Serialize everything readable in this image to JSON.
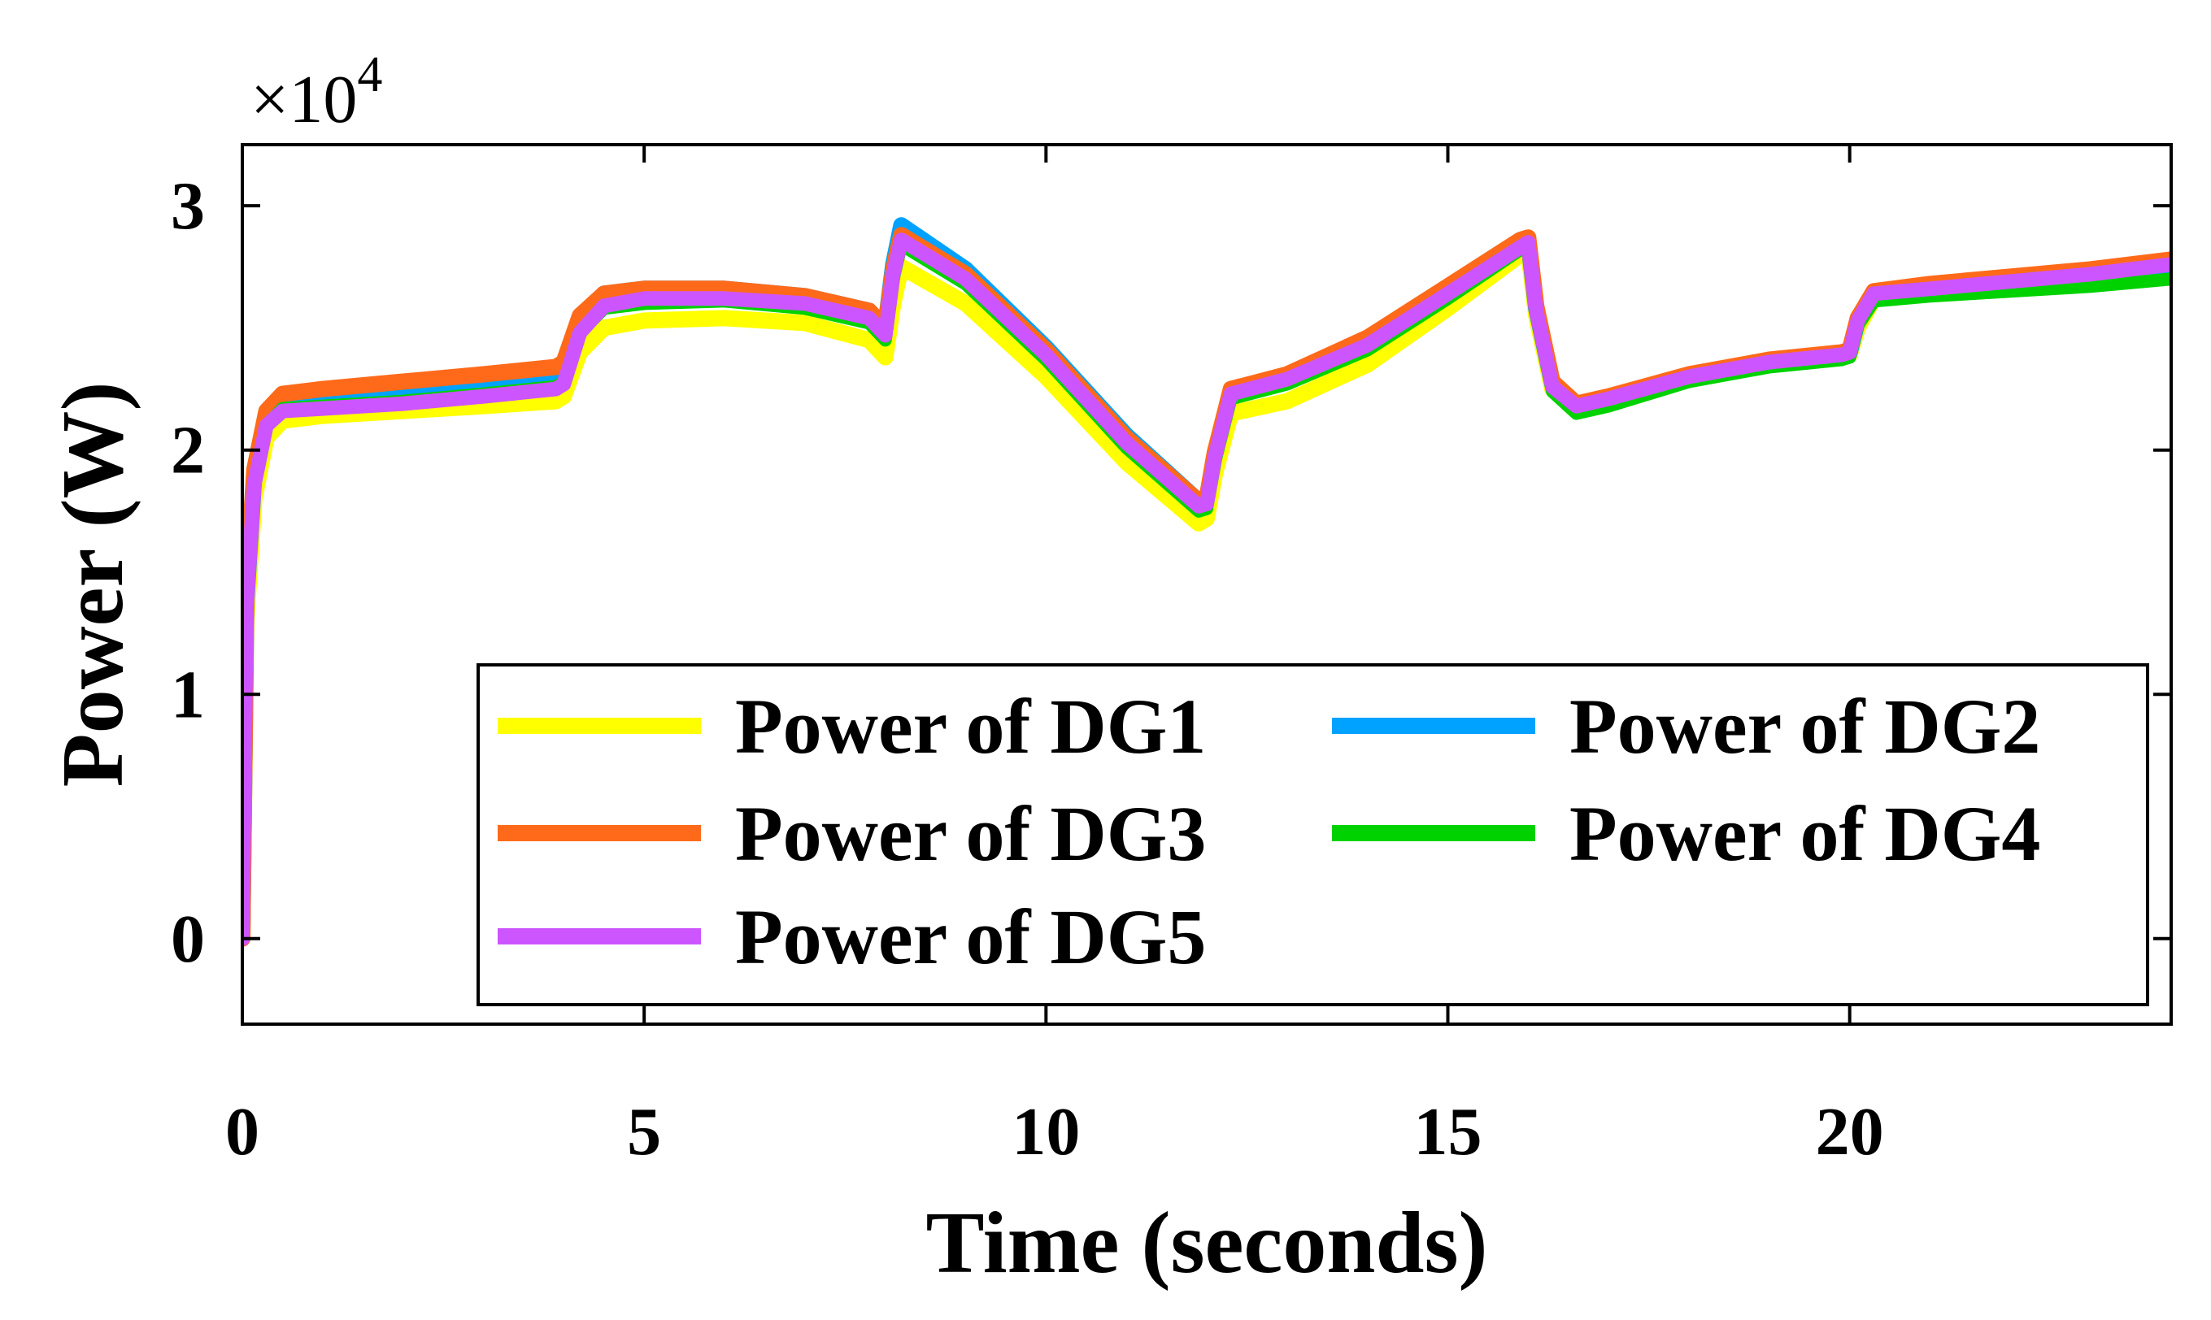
{
  "chart_data": {
    "type": "line",
    "title": "",
    "xlabel": "Time (seconds)",
    "ylabel": "Power (W)",
    "y_exponent_label": "×10",
    "y_exponent_power": "4",
    "xlim": [
      0,
      24
    ],
    "ylim": [
      -0.35,
      3.25
    ],
    "xticks": [
      0,
      5,
      10,
      15,
      20
    ],
    "xtick_labels": [
      "0",
      "5",
      "10",
      "15",
      "20"
    ],
    "yticks": [
      0,
      1,
      2,
      3
    ],
    "ytick_labels": [
      "0",
      "1",
      "2",
      "3"
    ],
    "grid": false,
    "legend_location": "lower-right",
    "series": [
      {
        "name": "Power of DG1",
        "color": "#ffff00",
        "x": [
          0,
          0.05,
          0.15,
          0.3,
          0.5,
          1,
          2,
          3,
          3.9,
          4.0,
          4.2,
          4.5,
          5,
          6,
          7,
          7.8,
          8.0,
          8.1,
          8.2,
          9,
          10,
          11,
          11.9,
          12.0,
          12.1,
          12.3,
          13,
          14,
          15,
          15.9,
          16.0,
          16.1,
          16.3,
          16.6,
          17,
          18,
          19,
          19.9,
          20.0,
          20.1,
          20.3,
          21,
          22,
          23,
          24
        ],
        "values": [
          0,
          1.3,
          1.8,
          2.05,
          2.12,
          2.14,
          2.16,
          2.18,
          2.2,
          2.22,
          2.4,
          2.5,
          2.53,
          2.54,
          2.52,
          2.45,
          2.38,
          2.6,
          2.75,
          2.6,
          2.3,
          1.95,
          1.7,
          1.72,
          1.9,
          2.15,
          2.2,
          2.35,
          2.58,
          2.8,
          2.82,
          2.55,
          2.25,
          2.17,
          2.2,
          2.29,
          2.35,
          2.38,
          2.39,
          2.5,
          2.62,
          2.64,
          2.67,
          2.7,
          2.74
        ]
      },
      {
        "name": "Power of DG2",
        "color": "#00a2ff",
        "x": [
          0,
          0.05,
          0.15,
          0.3,
          0.5,
          1,
          2,
          3,
          3.9,
          4.0,
          4.2,
          4.5,
          5,
          6,
          7,
          7.8,
          8.0,
          8.1,
          8.2,
          9,
          10,
          11,
          11.9,
          12.0,
          12.1,
          12.3,
          13,
          14,
          15,
          15.9,
          16.0,
          16.1,
          16.3,
          16.6,
          17,
          18,
          19,
          19.9,
          20.0,
          20.1,
          20.3,
          21,
          22,
          23,
          24
        ],
        "values": [
          0,
          1.38,
          1.9,
          2.13,
          2.2,
          2.22,
          2.24,
          2.28,
          2.3,
          2.32,
          2.53,
          2.64,
          2.66,
          2.66,
          2.63,
          2.57,
          2.5,
          2.76,
          2.92,
          2.74,
          2.42,
          2.06,
          1.79,
          1.8,
          1.98,
          2.24,
          2.3,
          2.44,
          2.65,
          2.84,
          2.86,
          2.58,
          2.27,
          2.18,
          2.21,
          2.3,
          2.36,
          2.39,
          2.4,
          2.53,
          2.64,
          2.67,
          2.69,
          2.72,
          2.76
        ]
      },
      {
        "name": "Power of DG3",
        "color": "#ff6a1a",
        "x": [
          0,
          0.05,
          0.15,
          0.3,
          0.5,
          1,
          2,
          3,
          3.9,
          4.0,
          4.2,
          4.5,
          5,
          6,
          7,
          7.8,
          8.0,
          8.1,
          8.2,
          9,
          10,
          11,
          11.9,
          12.0,
          12.1,
          12.3,
          13,
          14,
          15,
          15.9,
          16.0,
          16.1,
          16.3,
          16.6,
          17,
          18,
          19,
          19.9,
          20.0,
          20.1,
          20.3,
          21,
          22,
          23,
          24
        ],
        "values": [
          0,
          1.4,
          1.92,
          2.16,
          2.23,
          2.25,
          2.28,
          2.31,
          2.34,
          2.36,
          2.55,
          2.64,
          2.66,
          2.66,
          2.63,
          2.57,
          2.5,
          2.74,
          2.88,
          2.72,
          2.41,
          2.05,
          1.79,
          1.8,
          1.99,
          2.25,
          2.31,
          2.46,
          2.67,
          2.86,
          2.87,
          2.59,
          2.28,
          2.19,
          2.22,
          2.31,
          2.37,
          2.4,
          2.41,
          2.54,
          2.65,
          2.68,
          2.71,
          2.74,
          2.78
        ]
      },
      {
        "name": "Power of DG4",
        "color": "#00d200",
        "x": [
          0,
          0.05,
          0.15,
          0.3,
          0.5,
          1,
          2,
          3,
          3.9,
          4.0,
          4.2,
          4.5,
          5,
          6,
          7,
          7.8,
          8.0,
          8.1,
          8.2,
          9,
          10,
          11,
          11.9,
          12.0,
          12.1,
          12.3,
          13,
          14,
          15,
          15.9,
          16.0,
          16.1,
          16.3,
          16.6,
          17,
          18,
          19,
          19.9,
          20.0,
          20.1,
          20.3,
          21,
          22,
          23,
          24
        ],
        "values": [
          0,
          1.34,
          1.85,
          2.1,
          2.17,
          2.18,
          2.2,
          2.23,
          2.26,
          2.28,
          2.48,
          2.58,
          2.6,
          2.61,
          2.58,
          2.52,
          2.45,
          2.7,
          2.84,
          2.68,
          2.37,
          2.01,
          1.75,
          1.76,
          1.95,
          2.21,
          2.27,
          2.41,
          2.62,
          2.82,
          2.84,
          2.55,
          2.24,
          2.15,
          2.18,
          2.28,
          2.34,
          2.37,
          2.38,
          2.51,
          2.61,
          2.63,
          2.65,
          2.67,
          2.7
        ]
      },
      {
        "name": "Power of DG5",
        "color": "#cc55ff",
        "x": [
          0,
          0.05,
          0.15,
          0.3,
          0.5,
          1,
          2,
          3,
          3.9,
          4.0,
          4.2,
          4.5,
          5,
          6,
          7,
          7.8,
          8.0,
          8.1,
          8.2,
          9,
          10,
          11,
          11.9,
          12.0,
          12.1,
          12.3,
          13,
          14,
          15,
          15.9,
          16.0,
          16.1,
          16.3,
          16.6,
          17,
          18,
          19,
          19.9,
          20.0,
          20.1,
          20.3,
          21,
          22,
          23,
          24
        ],
        "values": [
          0,
          1.35,
          1.86,
          2.1,
          2.16,
          2.17,
          2.19,
          2.22,
          2.25,
          2.27,
          2.48,
          2.59,
          2.62,
          2.62,
          2.6,
          2.54,
          2.47,
          2.72,
          2.86,
          2.7,
          2.39,
          2.03,
          1.77,
          1.78,
          1.97,
          2.23,
          2.29,
          2.43,
          2.64,
          2.83,
          2.85,
          2.57,
          2.26,
          2.18,
          2.21,
          2.3,
          2.36,
          2.39,
          2.4,
          2.53,
          2.64,
          2.66,
          2.69,
          2.72,
          2.76
        ]
      }
    ]
  }
}
